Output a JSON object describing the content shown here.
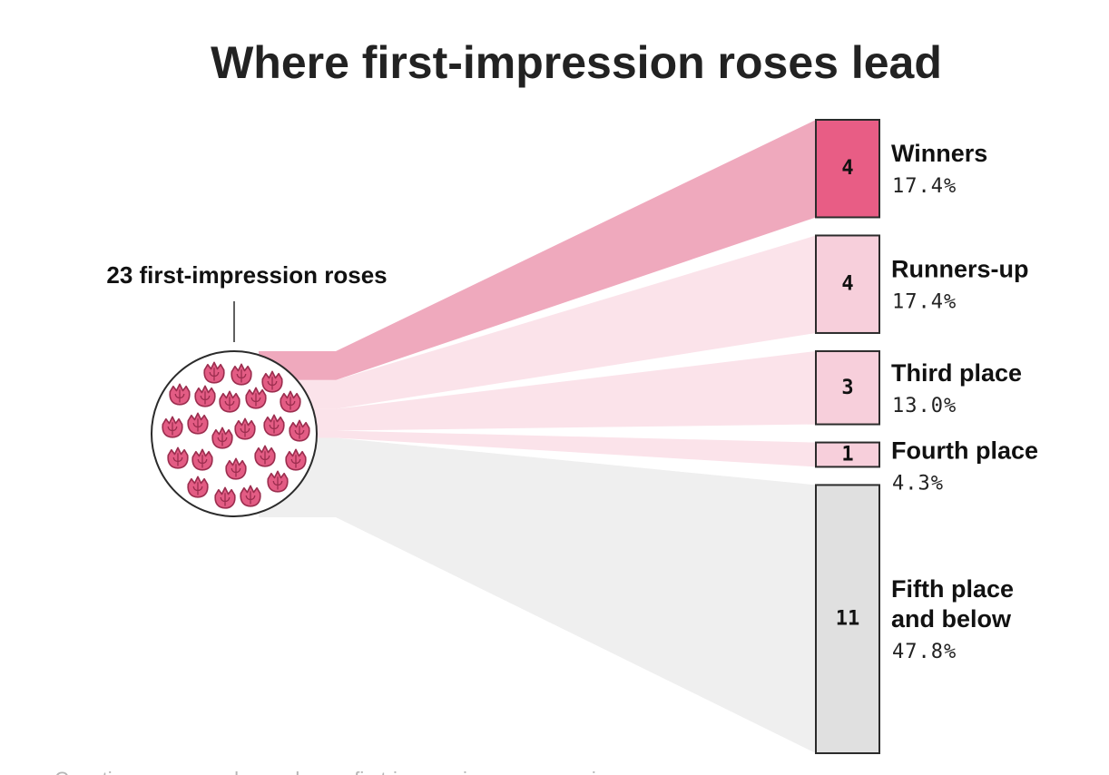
{
  "colors": {
    "winner_box": "#e85d85",
    "winner_flow": "#efa9bd",
    "pink_box": "#f7cfdb",
    "pink_flow": "#fbe3ea",
    "grey_box": "#e0e0e0",
    "grey_flow": "#efefef",
    "rose_fill": "#e35c84",
    "rose_stroke": "#9c2e4f",
    "border": "#2b2b2b"
  },
  "chart_data": {
    "type": "sankey",
    "title": "Where first-impression roses lead",
    "source": {
      "label": "23 first-impression roses",
      "total": 23,
      "icon": "rose-icon"
    },
    "categories": [
      {
        "id": "winners",
        "lines": [
          "Winners"
        ],
        "count": 4,
        "count_label": "4",
        "percent": "17.4%",
        "tone": "winner"
      },
      {
        "id": "runners-up",
        "lines": [
          "Runners-up"
        ],
        "count": 4,
        "count_label": "4",
        "percent": "17.4%",
        "tone": "pink"
      },
      {
        "id": "third-place",
        "lines": [
          "Third place"
        ],
        "count": 3,
        "count_label": "3",
        "percent": "13.0%",
        "tone": "pink"
      },
      {
        "id": "fourth-place",
        "lines": [
          "Fourth place"
        ],
        "count": 1,
        "count_label": "1",
        "percent": "4.3%",
        "tone": "pink"
      },
      {
        "id": "fifth-and-below",
        "lines": [
          "Fifth place",
          "and below"
        ],
        "count": 11,
        "count_label": "11",
        "percent": "47.8%",
        "tone": "grey"
      }
    ],
    "footnote": "Counting seasons when only one first-impression rose was given"
  }
}
